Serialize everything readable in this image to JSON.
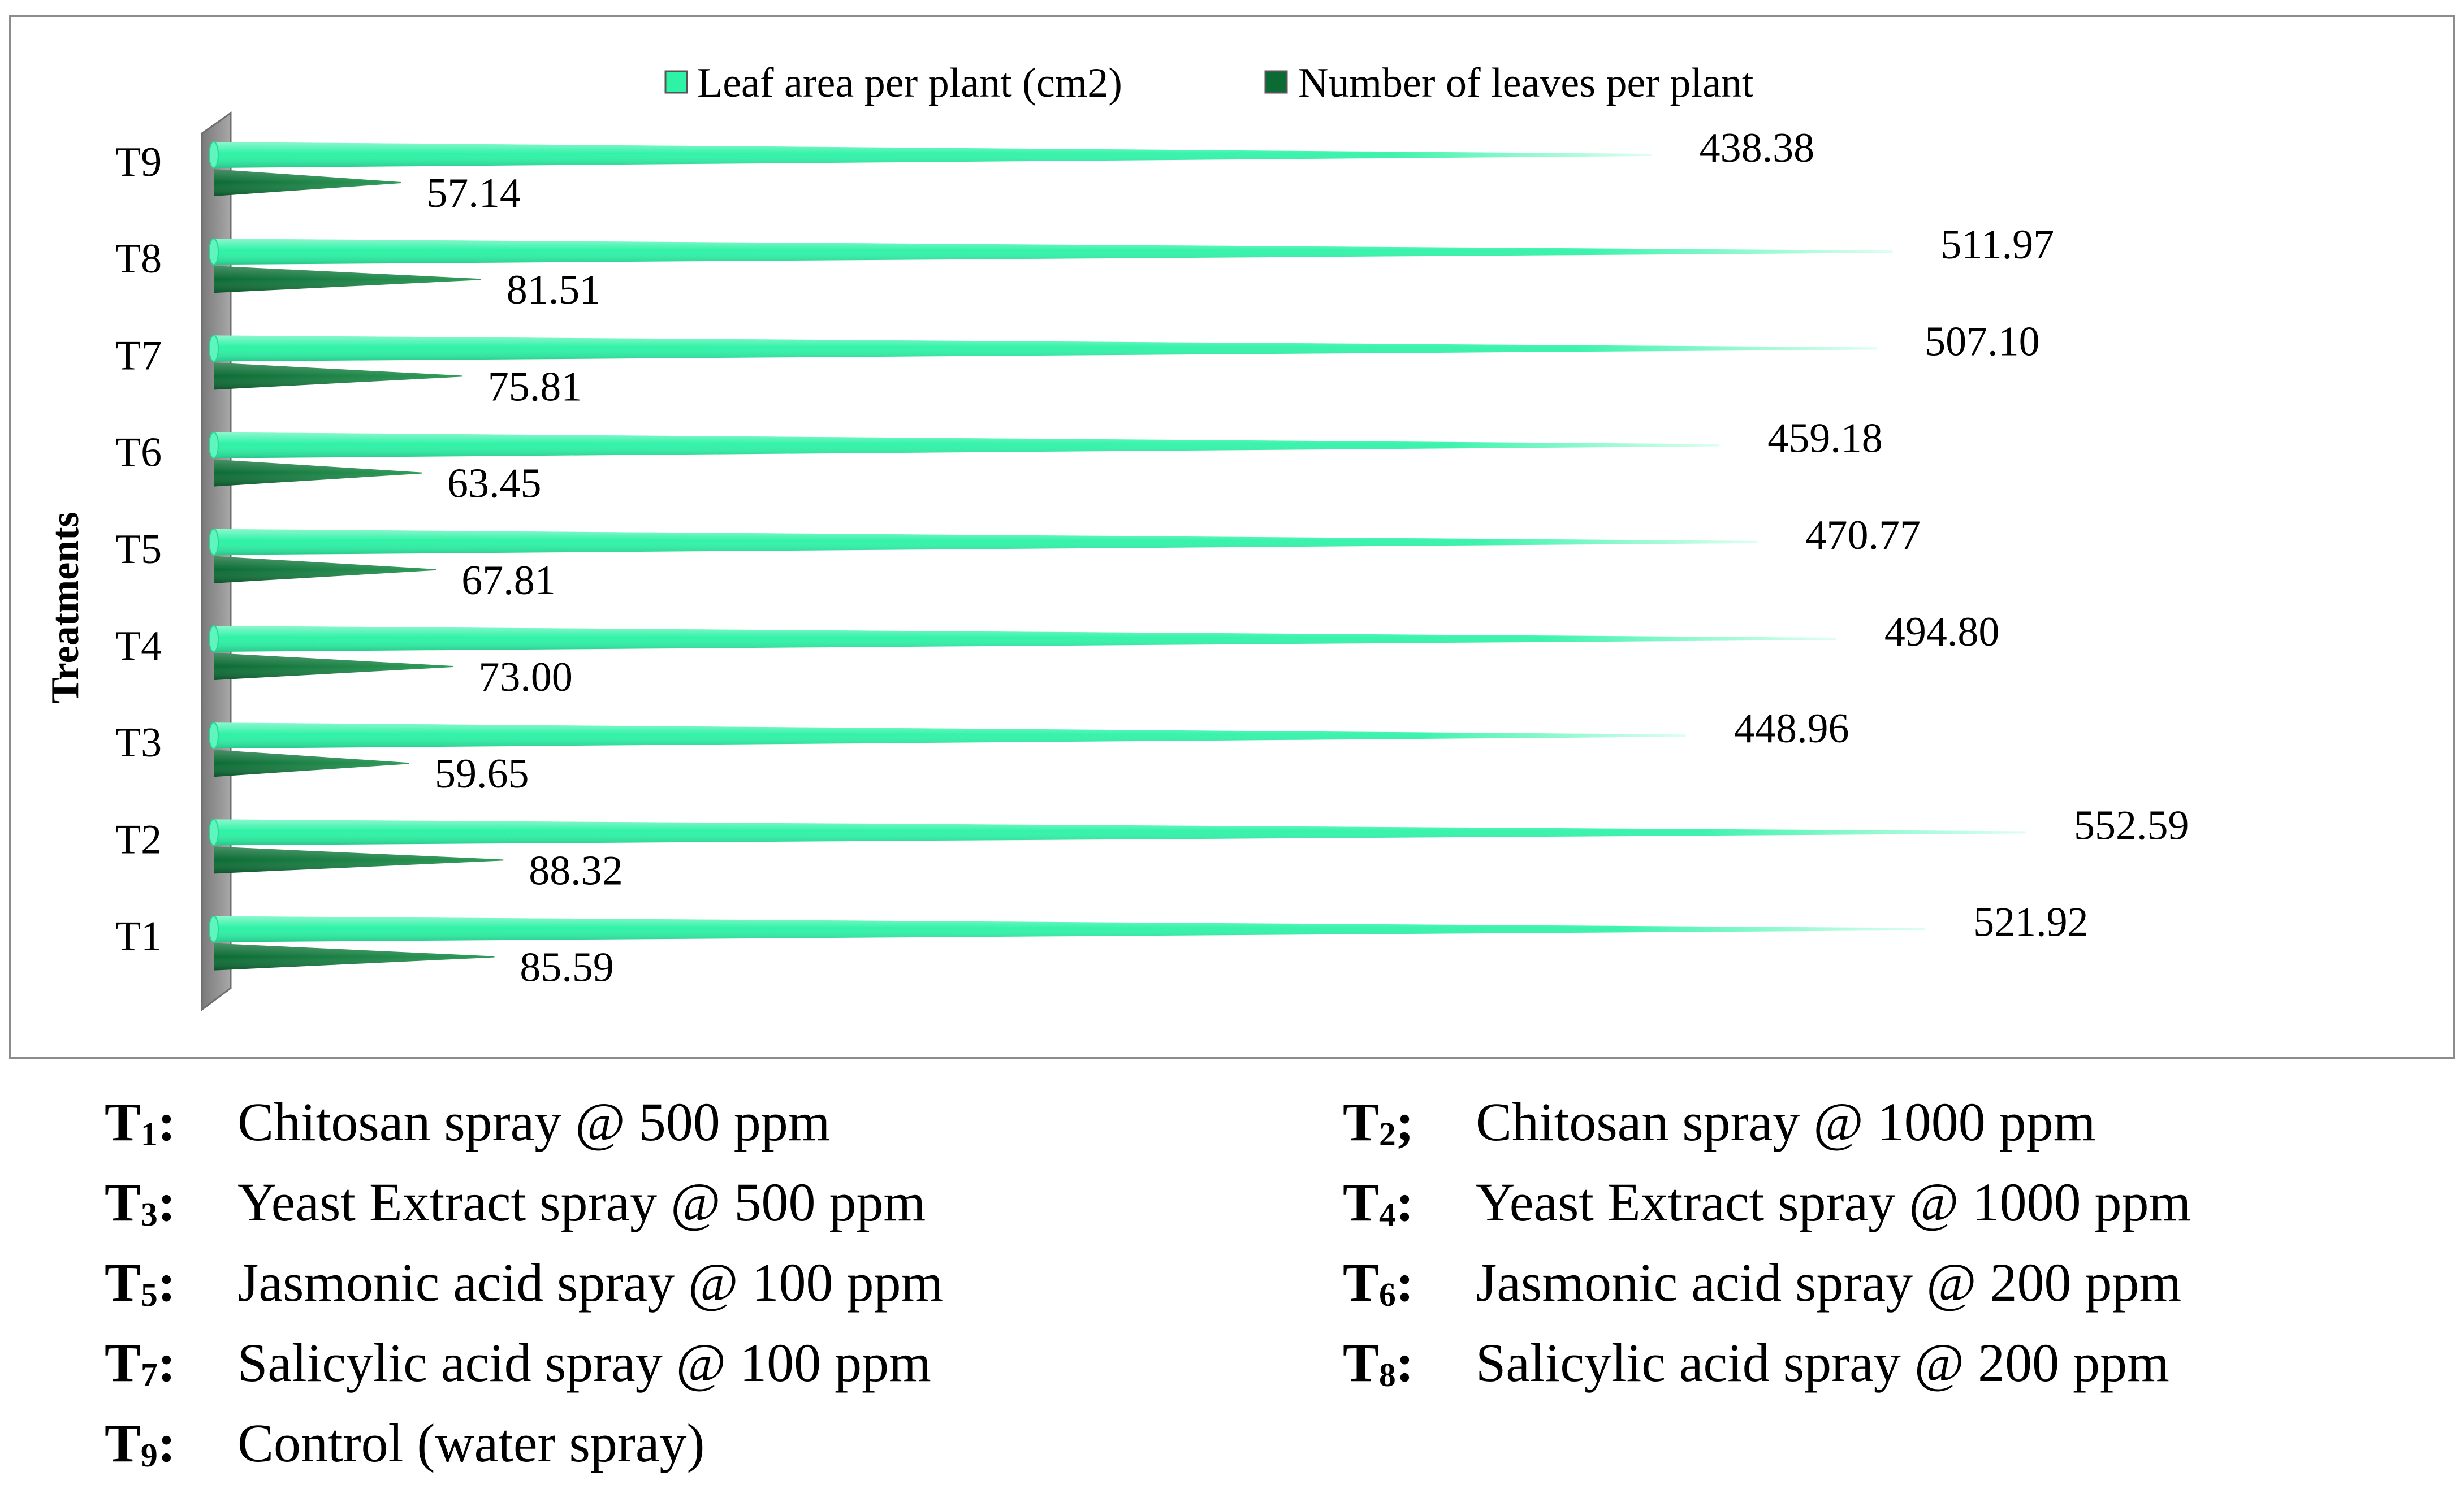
{
  "chart_data": {
    "type": "bar",
    "orientation": "horizontal",
    "style": "3d-cone",
    "y_axis_title": "Treatments",
    "categories": [
      "T1",
      "T2",
      "T3",
      "T4",
      "T5",
      "T6",
      "T7",
      "T8",
      "T9"
    ],
    "series": [
      {
        "name": "Leaf area per plant (cm2)",
        "color": "#2EF2A6",
        "values": [
          521.92,
          552.59,
          448.96,
          494.8,
          470.77,
          459.18,
          507.1,
          511.97,
          438.38
        ],
        "labels": [
          "521.92",
          "552.59",
          "448.96",
          "494.80",
          "470.77",
          "459.18",
          "507.10",
          "511.97",
          "438.38"
        ]
      },
      {
        "name": "Number of leaves per plant",
        "color": "#0C6B34",
        "values": [
          85.59,
          88.32,
          59.65,
          73.0,
          67.81,
          63.45,
          75.81,
          81.51,
          57.14
        ],
        "labels": [
          "85.59",
          "88.32",
          "59.65",
          "73.00",
          "67.81",
          "63.45",
          "75.81",
          "81.51",
          "57.14"
        ]
      }
    ],
    "xlim": [
      0,
      600
    ],
    "grid": false,
    "legend": "top-center"
  },
  "treatment_key": [
    {
      "code": "T",
      "sub": "1",
      "sep": ":",
      "desc": "Chitosan spray @ 500 ppm"
    },
    {
      "code": "T",
      "sub": "2",
      "sep": ";",
      "desc": "Chitosan spray @ 1000 ppm"
    },
    {
      "code": "T",
      "sub": "3",
      "sep": ":",
      "desc": "Yeast Extract spray @ 500 ppm"
    },
    {
      "code": "T",
      "sub": "4",
      "sep": ":",
      "desc": "Yeast Extract spray @ 1000 ppm"
    },
    {
      "code": "T",
      "sub": "5",
      "sep": ":",
      "desc": "Jasmonic acid spray @ 100 ppm"
    },
    {
      "code": "T",
      "sub": "6",
      "sep": ":",
      "desc": "Jasmonic acid spray @ 200 ppm"
    },
    {
      "code": "T",
      "sub": "7",
      "sep": ":",
      "desc": "Salicylic acid spray @ 100 ppm"
    },
    {
      "code": "T",
      "sub": "8",
      "sep": ":",
      "desc": "Salicylic acid spray @ 200 ppm"
    },
    {
      "code": "T",
      "sub": "9",
      "sep": ":",
      "desc": "Control (water spray)"
    }
  ],
  "colors": {
    "frame_border": "#8C8C8C",
    "axis_wall": "#9A9A9A",
    "axis_wall_dark": "#6E6E6E",
    "light_cone_tip": "#DFFFF1",
    "dark_cone_tip": "#2F9C5A",
    "legend_border": "#555555"
  }
}
